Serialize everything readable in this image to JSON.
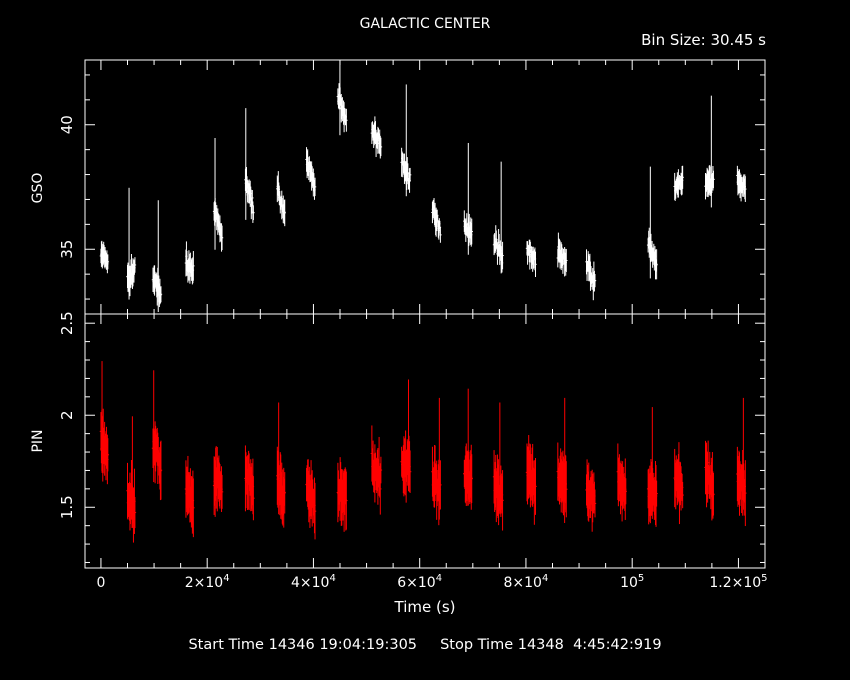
{
  "title": "GALACTIC CENTER",
  "bin_size_label": "Bin Size: 30.45 s",
  "footer": {
    "start_label": "Start Time",
    "start_value": "14346 19:04:19:305",
    "stop_label": "Stop Time",
    "stop_value": "14348  4:45:42:919"
  },
  "colors": {
    "background": "#000000",
    "axes": "#ffffff",
    "gso": "#ffffff",
    "pin": "#ff0000"
  },
  "chart_data": [
    {
      "type": "scatter",
      "panel": "top",
      "ylabel": "GSO",
      "xlabel": "",
      "xlim": [
        -3000,
        125000
      ],
      "ylim": [
        32.4,
        42.6
      ],
      "yticks": [
        35,
        40
      ],
      "ytick_labels": [
        "35",
        "40"
      ],
      "series": [
        {
          "color": "#ffffff",
          "error_bars": true,
          "segments": [
            {
              "x": [
                0,
                1300
              ],
              "y": [
                34.8,
                34.5
              ]
            },
            {
              "x": [
                5000,
                6400
              ],
              "y": [
                33.8,
                34.2
              ]
            },
            {
              "x": [
                9800,
                11300
              ],
              "y": [
                33.8,
                33.2
              ]
            },
            {
              "x": [
                16000,
                17400
              ],
              "y": [
                34.5,
                34.2
              ]
            },
            {
              "x": [
                21300,
                22800
              ],
              "y": [
                36.5,
                35.5
              ]
            },
            {
              "x": [
                27200,
                28700
              ],
              "y": [
                37.8,
                36.6
              ]
            },
            {
              "x": [
                33200,
                34600
              ],
              "y": [
                37.5,
                36.3
              ]
            },
            {
              "x": [
                38700,
                40300
              ],
              "y": [
                38.5,
                37.6
              ]
            },
            {
              "x": [
                44600,
                46200
              ],
              "y": [
                41.2,
                40.0
              ]
            },
            {
              "x": [
                51000,
                52700
              ],
              "y": [
                39.8,
                39.2
              ]
            },
            {
              "x": [
                56600,
                58200
              ],
              "y": [
                38.5,
                37.8
              ]
            },
            {
              "x": [
                62400,
                63900
              ],
              "y": [
                36.5,
                35.8
              ]
            },
            {
              "x": [
                68400,
                69800
              ],
              "y": [
                36.0,
                35.6
              ]
            },
            {
              "x": [
                74000,
                75600
              ],
              "y": [
                35.4,
                34.7
              ]
            },
            {
              "x": [
                80200,
                81800
              ],
              "y": [
                35.0,
                34.5
              ]
            },
            {
              "x": [
                86000,
                87600
              ],
              "y": [
                34.9,
                34.5
              ]
            },
            {
              "x": [
                91400,
                93000
              ],
              "y": [
                34.4,
                33.6
              ]
            },
            {
              "x": [
                103000,
                104600
              ],
              "y": [
                35.3,
                34.4
              ]
            },
            {
              "x": [
                108000,
                109500
              ],
              "y": [
                37.3,
                37.8
              ]
            },
            {
              "x": [
                113800,
                115300
              ],
              "y": [
                37.6,
                37.8
              ]
            },
            {
              "x": [
                119800,
                121300
              ],
              "y": [
                37.8,
                37.4
              ]
            }
          ]
        }
      ]
    },
    {
      "type": "scatter",
      "panel": "bottom",
      "ylabel": "PIN",
      "xlabel": "Time (s)",
      "xlim": [
        -3000,
        125000
      ],
      "ylim": [
        1.17,
        2.55
      ],
      "yticks": [
        1.5,
        2,
        2.5
      ],
      "ytick_labels": [
        "1.5",
        "2",
        "2.5"
      ],
      "xticks": [
        0,
        20000,
        40000,
        60000,
        80000,
        100000,
        120000
      ],
      "xtick_labels": [
        {
          "mantissa": "0",
          "exp": ""
        },
        {
          "mantissa": "2×10",
          "exp": "4"
        },
        {
          "mantissa": "4×10",
          "exp": "4"
        },
        {
          "mantissa": "6×10",
          "exp": "4"
        },
        {
          "mantissa": "8×10",
          "exp": "4"
        },
        {
          "mantissa": "10",
          "exp": "5"
        },
        {
          "mantissa": "1.2×10",
          "exp": "5"
        }
      ],
      "series": [
        {
          "color": "#ff0000",
          "error_bars": true,
          "segments": [
            {
              "x": [
                0,
                1300
              ],
              "y": [
                1.85,
                1.8
              ]
            },
            {
              "x": [
                5000,
                6400
              ],
              "y": [
                1.55,
                1.5
              ]
            },
            {
              "x": [
                9800,
                11300
              ],
              "y": [
                1.85,
                1.7
              ]
            },
            {
              "x": [
                16000,
                17400
              ],
              "y": [
                1.6,
                1.5
              ]
            },
            {
              "x": [
                21300,
                22800
              ],
              "y": [
                1.65,
                1.6
              ]
            },
            {
              "x": [
                27200,
                28700
              ],
              "y": [
                1.65,
                1.6
              ]
            },
            {
              "x": [
                33200,
                34600
              ],
              "y": [
                1.65,
                1.55
              ]
            },
            {
              "x": [
                38700,
                40300
              ],
              "y": [
                1.6,
                1.5
              ]
            },
            {
              "x": [
                44600,
                46200
              ],
              "y": [
                1.6,
                1.55
              ]
            },
            {
              "x": [
                51000,
                52700
              ],
              "y": [
                1.75,
                1.65
              ]
            },
            {
              "x": [
                56600,
                58200
              ],
              "y": [
                1.75,
                1.7
              ]
            },
            {
              "x": [
                62400,
                63900
              ],
              "y": [
                1.65,
                1.6
              ]
            },
            {
              "x": [
                68400,
                69800
              ],
              "y": [
                1.7,
                1.65
              ]
            },
            {
              "x": [
                74000,
                75600
              ],
              "y": [
                1.65,
                1.55
              ]
            },
            {
              "x": [
                80200,
                81800
              ],
              "y": [
                1.7,
                1.6
              ]
            },
            {
              "x": [
                86000,
                87600
              ],
              "y": [
                1.65,
                1.6
              ]
            },
            {
              "x": [
                91400,
                93000
              ],
              "y": [
                1.6,
                1.55
              ]
            },
            {
              "x": [
                97300,
                98800
              ],
              "y": [
                1.65,
                1.6
              ]
            },
            {
              "x": [
                103000,
                104600
              ],
              "y": [
                1.6,
                1.55
              ]
            },
            {
              "x": [
                108000,
                109500
              ],
              "y": [
                1.65,
                1.6
              ]
            },
            {
              "x": [
                113800,
                115300
              ],
              "y": [
                1.7,
                1.6
              ]
            },
            {
              "x": [
                119800,
                121300
              ],
              "y": [
                1.65,
                1.6
              ]
            }
          ]
        }
      ]
    }
  ]
}
